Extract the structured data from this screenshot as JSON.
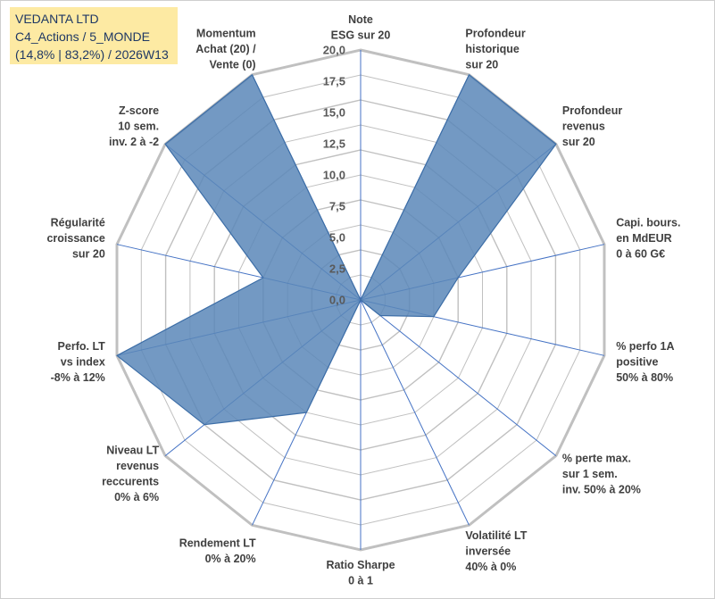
{
  "header": {
    "company": "VEDANTA LTD",
    "category": "C4_Actions / 5_MONDE",
    "stats": "(14,8% | 83,2%) / 2026W13"
  },
  "chart_data": {
    "type": "radar",
    "title": "",
    "r_min": 0,
    "r_max": 20,
    "tick_step": 2.5,
    "tick_labels": [
      "0,0",
      "2,5",
      "5,0",
      "7,5",
      "10,0",
      "12,5",
      "15,0",
      "17,5",
      "20,0"
    ],
    "grid_levels": 10,
    "colors": {
      "fill": "#5b87b8",
      "line": "#4472c4",
      "grid": "#c0c0c0"
    },
    "categories": [
      "Note|ESG sur 20",
      "Profondeur|historique|sur 20",
      "Profondeur|revenus|sur 20",
      "Capi. bours.|en MdEUR|0 à 60 G€",
      "% perfo 1A|positive|50% à 80%",
      "% perte max.|sur 1 sem.|inv. 50% à 20%",
      "Volatilité LT|inversée|40% à 0%",
      "Ratio Sharpe|0 à 1",
      "Rendement LT|0% à 20%",
      "Niveau LT|revenus|reccurents|0% à 6%",
      "Perfo. LT|vs index|-8% à 12%",
      "Régularité|croissance|sur 20",
      "Z-score|10 sem.|inv. 2 à -2",
      "Momentum|Achat (20) /|Vente (0)"
    ],
    "series": [
      {
        "name": "VEDANTA LTD",
        "values": [
          0,
          20,
          20,
          8,
          6,
          2,
          0,
          0,
          10,
          16,
          20,
          8,
          20,
          20
        ]
      }
    ]
  }
}
